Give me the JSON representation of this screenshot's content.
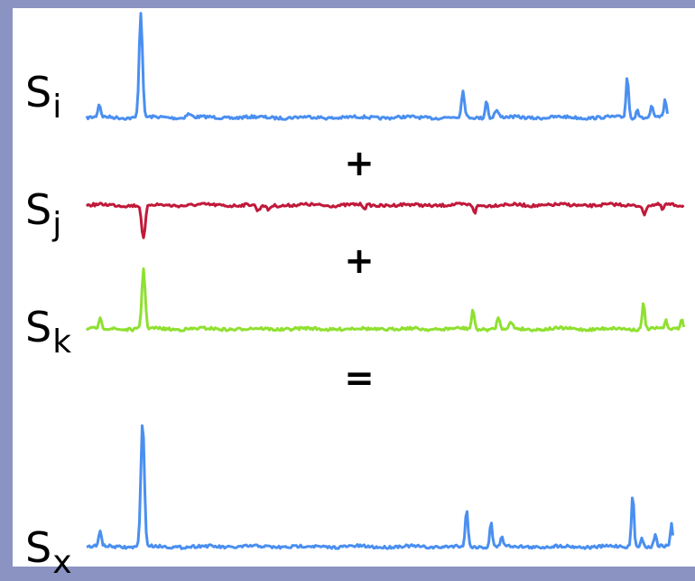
{
  "labels": {
    "si": {
      "base": "S",
      "sub": "i"
    },
    "sj": {
      "base": "S",
      "sub": "j"
    },
    "sk": {
      "base": "S",
      "sub": "k"
    },
    "sx": {
      "base": "S",
      "sub": "x"
    }
  },
  "operators": {
    "plus1": "+",
    "plus2": "+",
    "equals": "="
  },
  "colors": {
    "background": "#8a93c2",
    "si": "#4a8ff0",
    "sj": "#c0193a",
    "sk": "#8fe030",
    "sx": "#4a8ff0"
  }
}
